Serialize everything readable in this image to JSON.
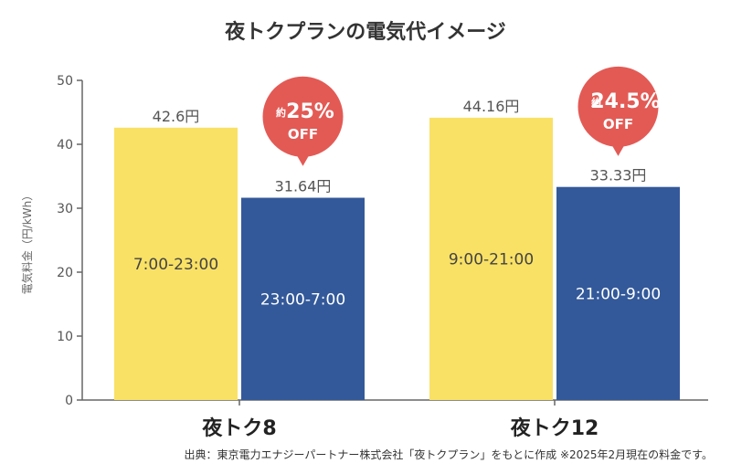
{
  "chart_data": {
    "type": "bar",
    "title": "夜トクプランの電気代イメージ",
    "ylabel": "電気料金（円/kWh）",
    "ylim": [
      0,
      50
    ],
    "yticks": [
      0,
      10,
      20,
      30,
      40,
      50
    ],
    "groups": [
      {
        "label": "夜トク8",
        "bars": [
          {
            "value": 42.6,
            "value_label": "42.6円",
            "inner_label": "7:00-23:00",
            "color": "#f9e165",
            "text_color": "#444444"
          },
          {
            "value": 31.64,
            "value_label": "31.64円",
            "inner_label": "23:00-7:00",
            "color": "#33599a",
            "text_color": "#ffffff"
          }
        ],
        "badge": {
          "prefix": "約",
          "percent": "25%",
          "suffix": "OFF"
        }
      },
      {
        "label": "夜トク12",
        "bars": [
          {
            "value": 44.16,
            "value_label": "44.16円",
            "inner_label": "9:00-21:00",
            "color": "#f9e165",
            "text_color": "#444444"
          },
          {
            "value": 33.33,
            "value_label": "33.33円",
            "inner_label": "21:00-9:00",
            "color": "#33599a",
            "text_color": "#ffffff"
          }
        ],
        "badge": {
          "prefix": "約",
          "percent": "24.5%",
          "suffix": "OFF"
        }
      }
    ],
    "badge_color": "#e35a55",
    "axis_color": "#666666"
  },
  "source_note": "出典：東京電力エナジーパートナー株式会社「夜トクプラン」をもとに作成 ※2025年2月現在の料金です。"
}
